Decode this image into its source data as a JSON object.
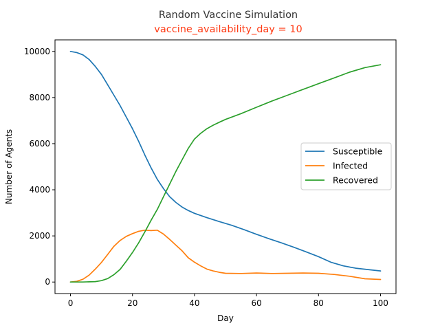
{
  "chart_data": {
    "type": "line",
    "title": "Random Vaccine Simulation",
    "subtitle": "vaccine_availability_day = 10",
    "xlabel": "Day",
    "ylabel": "Number of Agents",
    "xlim": [
      -5,
      105
    ],
    "ylim": [
      -500,
      10500
    ],
    "xticks": [
      0,
      20,
      40,
      60,
      80,
      100
    ],
    "yticks": [
      0,
      2000,
      4000,
      6000,
      8000,
      10000
    ],
    "grid": false,
    "legend_position": "center-right",
    "colors": {
      "subtitle": "#ff3d17",
      "Susceptible": "#1f77b4",
      "Infected": "#ff7f0e",
      "Recovered": "#2ca02c"
    },
    "series": [
      {
        "name": "Susceptible",
        "x": [
          0,
          2,
          4,
          6,
          8,
          10,
          12,
          14,
          16,
          18,
          20,
          22,
          24,
          26,
          28,
          30,
          32,
          34,
          36,
          38,
          40,
          44,
          48,
          52,
          56,
          60,
          64,
          68,
          72,
          76,
          80,
          84,
          88,
          92,
          96,
          100
        ],
        "values": [
          10000,
          9950,
          9850,
          9650,
          9350,
          9000,
          8550,
          8100,
          7650,
          7150,
          6650,
          6100,
          5500,
          4950,
          4450,
          4050,
          3700,
          3450,
          3250,
          3100,
          2980,
          2790,
          2620,
          2460,
          2270,
          2070,
          1880,
          1700,
          1510,
          1310,
          1100,
          860,
          700,
          600,
          540,
          480
        ]
      },
      {
        "name": "Infected",
        "x": [
          0,
          2,
          4,
          6,
          8,
          10,
          12,
          14,
          16,
          18,
          20,
          22,
          24,
          26,
          28,
          30,
          32,
          34,
          36,
          38,
          40,
          42,
          44,
          46,
          48,
          50,
          55,
          60,
          65,
          70,
          75,
          80,
          85,
          90,
          95,
          100
        ],
        "values": [
          0,
          30,
          120,
          300,
          560,
          850,
          1200,
          1550,
          1800,
          1980,
          2100,
          2200,
          2250,
          2230,
          2250,
          2080,
          1850,
          1600,
          1350,
          1050,
          860,
          700,
          560,
          480,
          420,
          380,
          370,
          390,
          370,
          380,
          390,
          380,
          330,
          250,
          140,
          110
        ]
      },
      {
        "name": "Recovered",
        "x": [
          0,
          4,
          8,
          10,
          12,
          14,
          16,
          18,
          20,
          22,
          24,
          26,
          28,
          30,
          32,
          34,
          36,
          38,
          40,
          42,
          44,
          46,
          48,
          50,
          55,
          60,
          65,
          70,
          75,
          80,
          85,
          90,
          95,
          100
        ],
        "values": [
          0,
          0,
          20,
          60,
          150,
          320,
          550,
          900,
          1280,
          1700,
          2180,
          2680,
          3150,
          3700,
          4250,
          4800,
          5300,
          5800,
          6200,
          6450,
          6650,
          6800,
          6930,
          7050,
          7300,
          7580,
          7850,
          8100,
          8350,
          8600,
          8850,
          9100,
          9300,
          9420
        ]
      }
    ]
  }
}
